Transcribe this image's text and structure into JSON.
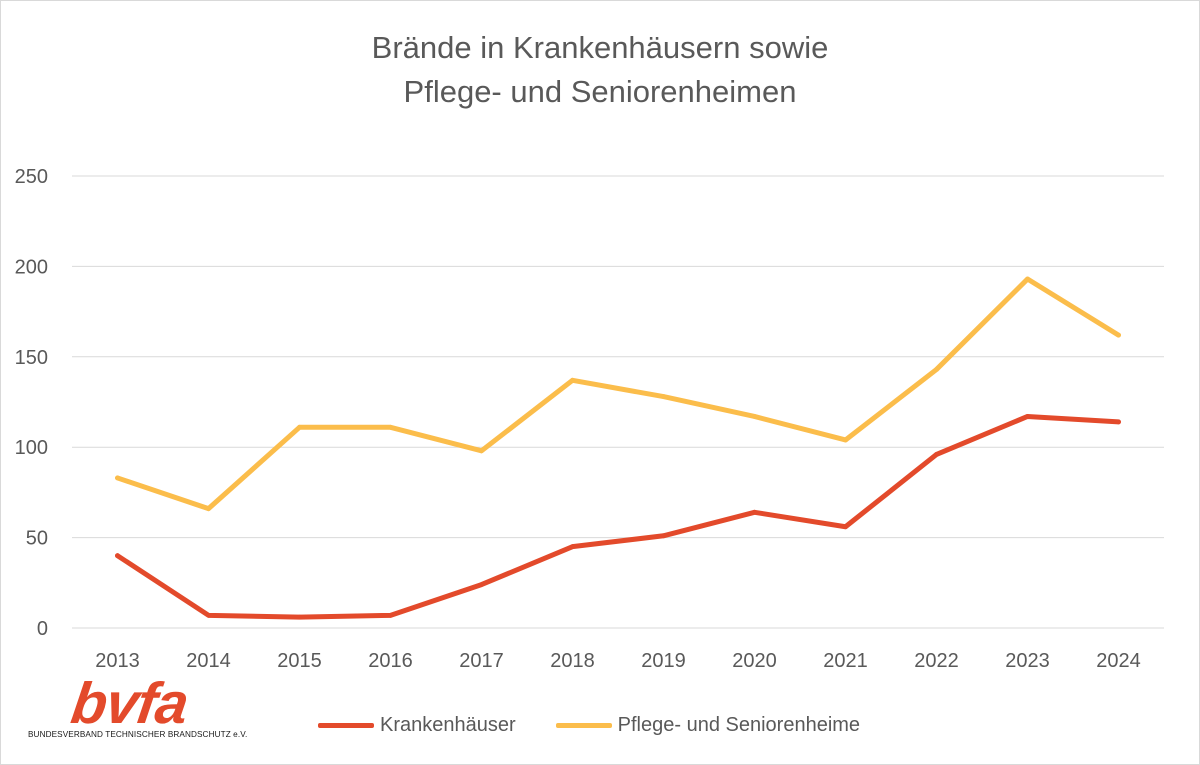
{
  "chart_data": {
    "type": "line",
    "title_lines": [
      "Brände in Krankenhäusern sowie",
      "Pflege- und Seniorenheimen"
    ],
    "categories": [
      "2013",
      "2014",
      "2015",
      "2016",
      "2017",
      "2018",
      "2019",
      "2020",
      "2021",
      "2022",
      "2023",
      "2024"
    ],
    "series": [
      {
        "name": "Krankenhäuser",
        "color": "#e34a2b",
        "values": [
          40,
          7,
          6,
          7,
          24,
          45,
          51,
          64,
          56,
          96,
          117,
          114
        ]
      },
      {
        "name": "Pflege- und Seniorenheime",
        "color": "#fbbd4b",
        "values": [
          83,
          66,
          111,
          111,
          98,
          137,
          128,
          117,
          104,
          143,
          193,
          162
        ]
      }
    ],
    "y_ticks": [
      "0",
      "50",
      "100",
      "150",
      "200",
      "250"
    ],
    "ylim": [
      0,
      250
    ],
    "grid": true,
    "legend_position": "bottom"
  },
  "logo": {
    "text": "bvfa",
    "subtitle": "BUNDESVERBAND TECHNISCHER BRANDSCHUTZ e.V.",
    "color": "#e34a2b"
  }
}
